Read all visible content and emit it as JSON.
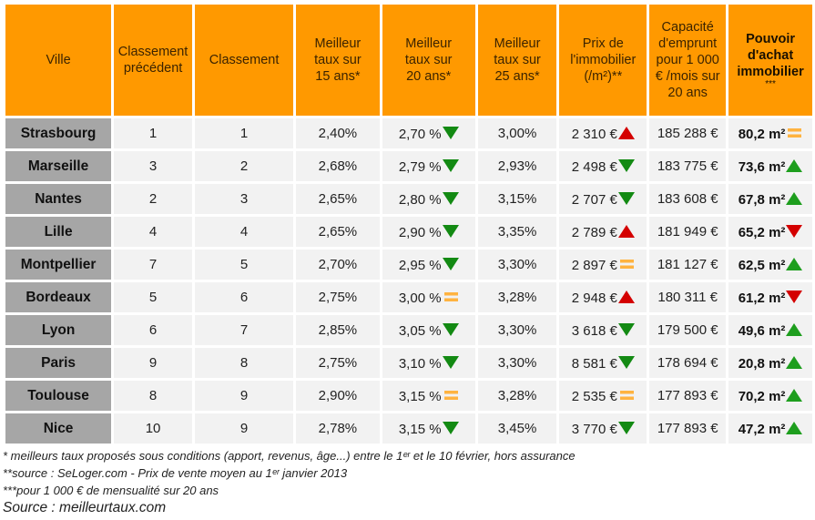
{
  "headers": [
    "Ville",
    "Classement précédent",
    "Classement",
    "Meilleur taux sur 15 ans*",
    "Meilleur taux sur 20 ans*",
    "Meilleur taux sur 25 ans*",
    "Prix de l'immobilier (/m²)**",
    "Capacité d'emprunt pour 1 000 € /mois sur 20 ans",
    "Pouvoir d'achat immobilier",
    "***"
  ],
  "colors": {
    "header": "#ff9900",
    "city": "#a6a6a6",
    "cell": "#f2f2f2",
    "up_red": "#d40000",
    "up_green": "#1e9e1e",
    "down_green": "#138a13",
    "down_red": "#d40000",
    "equal": "#ffb340"
  },
  "rows": [
    {
      "ville": "Strasbourg",
      "prev": "1",
      "rank": "1",
      "t15": "2,40%",
      "t20": "2,70 %",
      "t20_icon": "down-green",
      "t25": "3,00%",
      "prix": "2 310 €",
      "prix_icon": "up-red",
      "cap": "185 288 €",
      "pouvoir": "80,2 m²",
      "pouvoir_icon": "equal"
    },
    {
      "ville": "Marseille",
      "prev": "3",
      "rank": "2",
      "t15": "2,68%",
      "t20": "2,79 %",
      "t20_icon": "down-green",
      "t25": "2,93%",
      "prix": "2 498 €",
      "prix_icon": "down-green",
      "cap": "183 775 €",
      "pouvoir": "73,6 m²",
      "pouvoir_icon": "up-green"
    },
    {
      "ville": "Nantes",
      "prev": "2",
      "rank": "3",
      "t15": "2,65%",
      "t20": "2,80 %",
      "t20_icon": "down-green",
      "t25": "3,15%",
      "prix": "2 707 €",
      "prix_icon": "down-green",
      "cap": "183 608 €",
      "pouvoir": "67,8 m²",
      "pouvoir_icon": "up-green"
    },
    {
      "ville": "Lille",
      "prev": "4",
      "rank": "4",
      "t15": "2,65%",
      "t20": "2,90 %",
      "t20_icon": "down-green",
      "t25": "3,35%",
      "prix": "2 789 €",
      "prix_icon": "up-red",
      "cap": "181 949 €",
      "pouvoir": "65,2 m²",
      "pouvoir_icon": "down-red"
    },
    {
      "ville": "Montpellier",
      "prev": "7",
      "rank": "5",
      "t15": "2,70%",
      "t20": "2,95 %",
      "t20_icon": "down-green",
      "t25": "3,30%",
      "prix": "2 897 €",
      "prix_icon": "equal",
      "cap": "181 127 €",
      "pouvoir": "62,5 m²",
      "pouvoir_icon": "up-green"
    },
    {
      "ville": "Bordeaux",
      "prev": "5",
      "rank": "6",
      "t15": "2,75%",
      "t20": "3,00 %",
      "t20_icon": "equal",
      "t25": "3,28%",
      "prix": "2 948 €",
      "prix_icon": "up-red",
      "cap": "180 311 €",
      "pouvoir": "61,2 m²",
      "pouvoir_icon": "down-red"
    },
    {
      "ville": "Lyon",
      "prev": "6",
      "rank": "7",
      "t15": "2,85%",
      "t20": "3,05 %",
      "t20_icon": "down-green",
      "t25": "3,30%",
      "prix": "3 618 €",
      "prix_icon": "down-green",
      "cap": "179 500 €",
      "pouvoir": "49,6 m²",
      "pouvoir_icon": "up-green"
    },
    {
      "ville": "Paris",
      "prev": "9",
      "rank": "8",
      "t15": "2,75%",
      "t20": "3,10 %",
      "t20_icon": "down-green",
      "t25": "3,30%",
      "prix": "8 581 €",
      "prix_icon": "down-green",
      "cap": "178 694 €",
      "pouvoir": "20,8 m²",
      "pouvoir_icon": "up-green"
    },
    {
      "ville": "Toulouse",
      "prev": "8",
      "rank": "9",
      "t15": "2,90%",
      "t20": "3,15 %",
      "t20_icon": "equal",
      "t25": "3,28%",
      "prix": "2 535 €",
      "prix_icon": "equal",
      "cap": "177 893 €",
      "pouvoir": "70,2 m²",
      "pouvoir_icon": "up-green"
    },
    {
      "ville": "Nice",
      "prev": "10",
      "rank": "9",
      "t15": "2,78%",
      "t20": "3,15 %",
      "t20_icon": "down-green",
      "t25": "3,45%",
      "prix": "3 770 €",
      "prix_icon": "down-green",
      "cap": "177 893 €",
      "pouvoir": "47,2 m²",
      "pouvoir_icon": "up-green"
    }
  ],
  "footnotes": [
    "* meilleurs taux proposés sous conditions (apport, revenus, âge...) entre le 1ᵉʳ et le 10 février, hors assurance",
    "**source : SeLoger.com -  Prix de vente moyen au 1ᵉʳ janvier 2013",
    "***pour 1 000 € de mensualité sur 20 ans"
  ],
  "source": "Source : meilleurtaux.com"
}
